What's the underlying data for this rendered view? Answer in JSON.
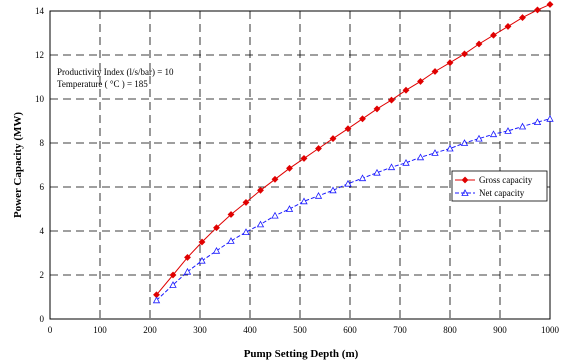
{
  "chart_data": {
    "type": "line",
    "xlabel": "Pump Setting Depth (m)",
    "ylabel": "Power Capacity (MW)",
    "xlim": [
      0,
      1000
    ],
    "ylim": [
      0,
      14
    ],
    "x_ticks": [
      "0",
      "100",
      "200",
      "300",
      "400",
      "500",
      "600",
      "700",
      "800",
      "900",
      "1000"
    ],
    "y_ticks": [
      "0",
      "2",
      "4",
      "6",
      "8",
      "10",
      "12",
      "14"
    ],
    "grid": true,
    "grid_style": "dashed",
    "legend_position": "right-middle",
    "annotations": [
      "Productivity Index (l/s/bar) = 10",
      "Temperature ( °C ) = 185"
    ],
    "series": [
      {
        "name": "Gross capacity",
        "color": "#e00000",
        "marker": "diamond",
        "line_style": "solid",
        "x": [
          213,
          246,
          275,
          304,
          333,
          362,
          392,
          421,
          450,
          479,
          508,
          537,
          566,
          596,
          625,
          654,
          683,
          712,
          741,
          770,
          800,
          829,
          858,
          887,
          916,
          945,
          975,
          1000
        ],
        "y": [
          1.1,
          2.0,
          2.8,
          3.5,
          4.15,
          4.75,
          5.3,
          5.85,
          6.35,
          6.85,
          7.3,
          7.75,
          8.2,
          8.65,
          9.1,
          9.55,
          9.95,
          10.4,
          10.8,
          11.25,
          11.65,
          12.05,
          12.5,
          12.9,
          13.3,
          13.7,
          14.05,
          14.3
        ]
      },
      {
        "name": "Net capacity",
        "color": "#1a1aff",
        "marker": "triangle",
        "line_style": "dashed",
        "x": [
          213,
          246,
          275,
          304,
          333,
          362,
          392,
          421,
          450,
          479,
          508,
          537,
          566,
          596,
          625,
          654,
          683,
          712,
          741,
          770,
          800,
          829,
          858,
          887,
          916,
          945,
          975,
          1000
        ],
        "y": [
          0.85,
          1.55,
          2.15,
          2.65,
          3.1,
          3.55,
          3.95,
          4.3,
          4.7,
          5.0,
          5.35,
          5.6,
          5.85,
          6.15,
          6.4,
          6.65,
          6.9,
          7.1,
          7.35,
          7.55,
          7.75,
          8.0,
          8.2,
          8.4,
          8.55,
          8.75,
          8.95,
          9.1
        ]
      }
    ]
  }
}
